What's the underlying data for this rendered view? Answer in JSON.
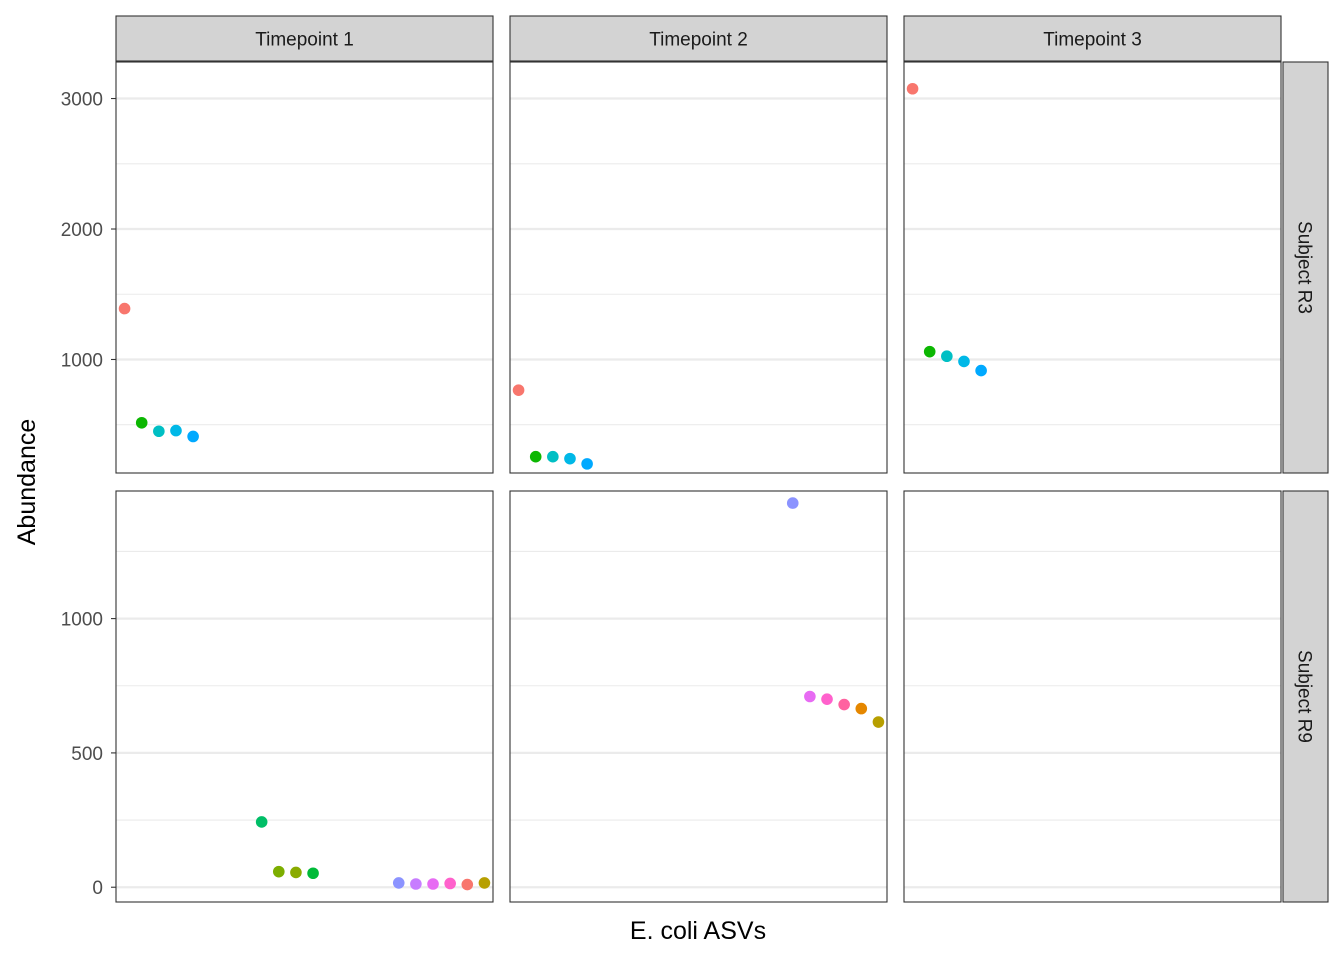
{
  "chart_data": {
    "type": "scatter",
    "title": "",
    "xlabel": "E. coli ASVs",
    "ylabel": "Abundance",
    "facet_cols": [
      "Timepoint 1",
      "Timepoint 2",
      "Timepoint 3"
    ],
    "facet_rows": [
      {
        "label": "Subject R3",
        "ylim": [
          130,
          3280
        ],
        "yticks": [
          1000,
          2000,
          3000
        ],
        "yticklabels": [
          "1000",
          "2000",
          "3000"
        ],
        "yminor": [
          500,
          1500,
          2500
        ]
      },
      {
        "label": "Subject R9",
        "ylim": [
          -55,
          1475
        ],
        "yticks": [
          0,
          500,
          1000
        ],
        "yticklabels": [
          "0",
          "500",
          "1000"
        ],
        "yminor": [
          250,
          750,
          1250
        ]
      }
    ],
    "asv_slots": 22,
    "panels": [
      {
        "row": 0,
        "col": 0,
        "points": [
          {
            "x": 1,
            "y": 1390,
            "color": "#F8766D"
          },
          {
            "x": 2,
            "y": 515,
            "color": "#0CB702"
          },
          {
            "x": 3,
            "y": 450,
            "color": "#00BFC4"
          },
          {
            "x": 4,
            "y": 455,
            "color": "#00B8E7"
          },
          {
            "x": 5,
            "y": 410,
            "color": "#00A9FF"
          }
        ]
      },
      {
        "row": 0,
        "col": 1,
        "points": [
          {
            "x": 1,
            "y": 765,
            "color": "#F8766D"
          },
          {
            "x": 2,
            "y": 255,
            "color": "#0CB702"
          },
          {
            "x": 3,
            "y": 255,
            "color": "#00BFC4"
          },
          {
            "x": 4,
            "y": 240,
            "color": "#00B8E7"
          },
          {
            "x": 5,
            "y": 200,
            "color": "#00A9FF"
          }
        ]
      },
      {
        "row": 0,
        "col": 2,
        "points": [
          {
            "x": 1,
            "y": 3075,
            "color": "#F8766D"
          },
          {
            "x": 2,
            "y": 1060,
            "color": "#0CB702"
          },
          {
            "x": 3,
            "y": 1025,
            "color": "#00BFC4"
          },
          {
            "x": 4,
            "y": 985,
            "color": "#00B8E7"
          },
          {
            "x": 5,
            "y": 915,
            "color": "#00A9FF"
          }
        ]
      },
      {
        "row": 1,
        "col": 0,
        "points": [
          {
            "x": 9,
            "y": 243,
            "color": "#00BE67"
          },
          {
            "x": 10,
            "y": 58,
            "color": "#7CAE00"
          },
          {
            "x": 11,
            "y": 55,
            "color": "#8AAB00"
          },
          {
            "x": 12,
            "y": 52,
            "color": "#00BA38"
          },
          {
            "x": 17,
            "y": 16,
            "color": "#8B93FF"
          },
          {
            "x": 18,
            "y": 12,
            "color": "#C77CFF"
          },
          {
            "x": 19,
            "y": 12,
            "color": "#E76BF3"
          },
          {
            "x": 20,
            "y": 14,
            "color": "#FF61CC"
          },
          {
            "x": 21,
            "y": 10,
            "color": "#F8766D"
          },
          {
            "x": 22,
            "y": 16,
            "color": "#B79F00"
          }
        ]
      },
      {
        "row": 1,
        "col": 1,
        "points": [
          {
            "x": 17,
            "y": 1430,
            "color": "#8B93FF"
          },
          {
            "x": 18,
            "y": 710,
            "color": "#E76BF3"
          },
          {
            "x": 19,
            "y": 700,
            "color": "#FF61CC"
          },
          {
            "x": 20,
            "y": 680,
            "color": "#FF62A0"
          },
          {
            "x": 21,
            "y": 665,
            "color": "#E58700"
          },
          {
            "x": 22,
            "y": 615,
            "color": "#B79F00"
          }
        ]
      },
      {
        "row": 1,
        "col": 2,
        "points": []
      }
    ]
  }
}
